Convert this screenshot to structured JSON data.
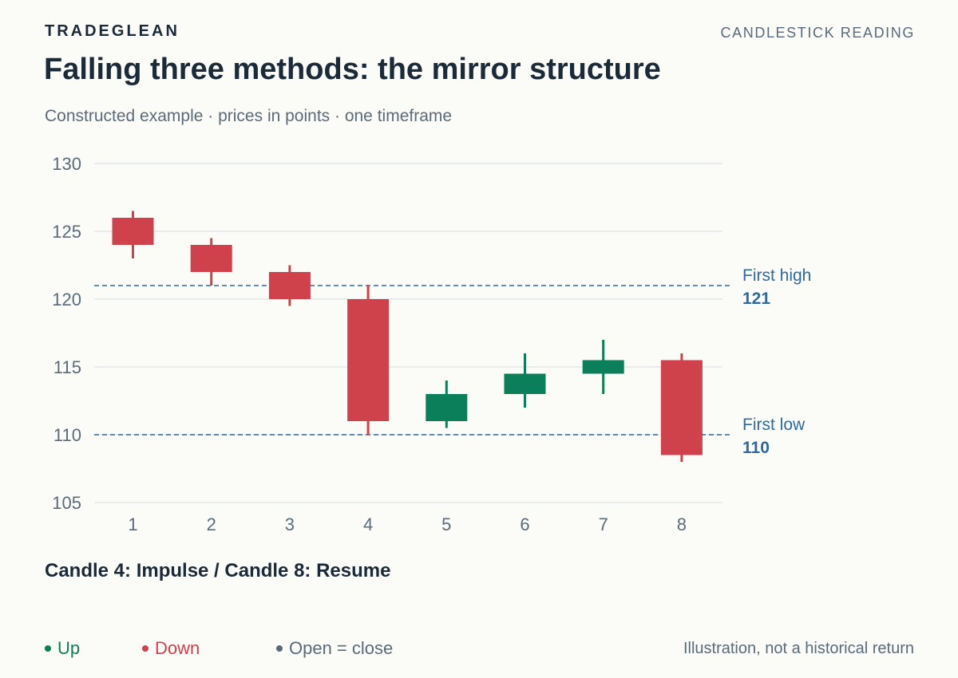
{
  "header": {
    "brand": "TRADEGLEAN",
    "section": "CANDLESTICK READING",
    "title": "Falling three methods: the mirror structure",
    "subtitle": "Constructed example · prices in points · one timeframe"
  },
  "colors": {
    "up": "#0b7f5a",
    "down": "#cf424c",
    "neutral": "#5a6b7a",
    "reference": "#2e6a9e",
    "grid": "#dde3ea"
  },
  "chart_data": {
    "type": "candlestick",
    "ylim": [
      105,
      130
    ],
    "y_ticks": [
      105,
      110,
      115,
      120,
      125,
      130
    ],
    "categories": [
      "1",
      "2",
      "3",
      "4",
      "5",
      "6",
      "7",
      "8"
    ],
    "candles": [
      {
        "x": "1",
        "open": 126,
        "high": 126.5,
        "low": 123,
        "close": 124,
        "direction": "down"
      },
      {
        "x": "2",
        "open": 124,
        "high": 124.5,
        "low": 121,
        "close": 122,
        "direction": "down"
      },
      {
        "x": "3",
        "open": 122,
        "high": 122.5,
        "low": 119.5,
        "close": 120,
        "direction": "down"
      },
      {
        "x": "4",
        "open": 120,
        "high": 121,
        "low": 110,
        "close": 111,
        "direction": "down"
      },
      {
        "x": "5",
        "open": 111,
        "high": 114,
        "low": 110.5,
        "close": 113,
        "direction": "up"
      },
      {
        "x": "6",
        "open": 113,
        "high": 116,
        "low": 112,
        "close": 114.5,
        "direction": "up"
      },
      {
        "x": "7",
        "open": 114.5,
        "high": 117,
        "low": 113,
        "close": 115.5,
        "direction": "up"
      },
      {
        "x": "8",
        "open": 115.5,
        "high": 116,
        "low": 108,
        "close": 108.5,
        "direction": "down"
      }
    ],
    "reference_lines": [
      {
        "label": "First high",
        "value": 121,
        "value_text": "121"
      },
      {
        "label": "First low",
        "value": 110,
        "value_text": "110"
      }
    ],
    "grid": true
  },
  "annotation": "Candle 4: Impulse / Candle 8: Resume",
  "legend": [
    {
      "label": "Up",
      "key": "up"
    },
    {
      "label": "Down",
      "key": "down"
    },
    {
      "label": "Open = close",
      "key": "neutral"
    }
  ],
  "footnote": "Illustration, not a historical return"
}
